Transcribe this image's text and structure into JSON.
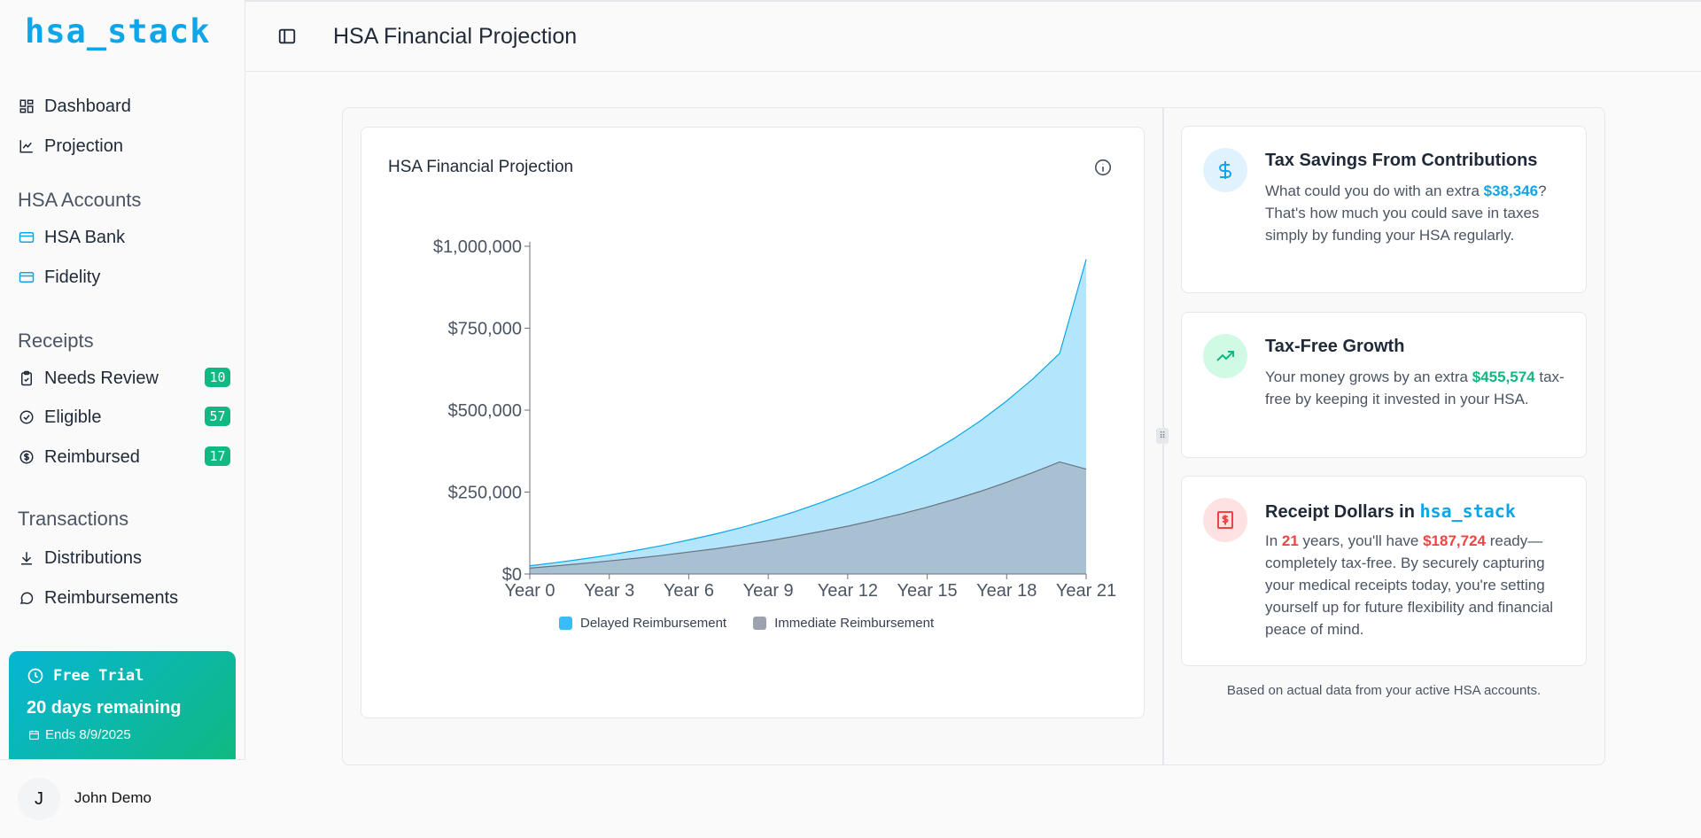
{
  "app": {
    "logo": "hsa_stack"
  },
  "sidebar": {
    "nav": [
      {
        "label": "Dashboard",
        "icon": "grid-icon"
      },
      {
        "label": "Projection",
        "icon": "line-chart-icon"
      }
    ],
    "accounts_title": "HSA Accounts",
    "accounts": [
      {
        "label": "HSA Bank",
        "icon": "credit-card-icon"
      },
      {
        "label": "Fidelity",
        "icon": "credit-card-icon"
      }
    ],
    "receipts_title": "Receipts",
    "receipts": [
      {
        "label": "Needs Review",
        "count": "10",
        "icon": "clipboard-check-icon"
      },
      {
        "label": "Eligible",
        "count": "57",
        "icon": "check-circle-icon"
      },
      {
        "label": "Reimbursed",
        "count": "17",
        "icon": "dollar-circle-icon"
      }
    ],
    "transactions_title": "Transactions",
    "transactions": [
      {
        "label": "Distributions",
        "icon": "download-icon"
      },
      {
        "label": "Reimbursements",
        "icon": "message-circle-icon"
      }
    ],
    "trial": {
      "title": "Free Trial",
      "days": "20 days remaining",
      "ends": "Ends 8/9/2025"
    },
    "user": {
      "initial": "J",
      "name": "John Demo"
    }
  },
  "header": {
    "title": "HSA Financial Projection"
  },
  "chart_data": {
    "type": "area",
    "title": "HSA Financial Projection",
    "categories": [
      "Year 0",
      "Year 3",
      "Year 6",
      "Year 9",
      "Year 12",
      "Year 15",
      "Year 18",
      "Year 21"
    ],
    "x": [
      0,
      1,
      2,
      3,
      4,
      5,
      6,
      7,
      8,
      9,
      10,
      11,
      12,
      13,
      14,
      15,
      16,
      17,
      18,
      19,
      20,
      21
    ],
    "series": [
      {
        "name": "Delayed Reimbursement",
        "color": "#38bdf8",
        "values": [
          25000,
          35000,
          46000,
          58000,
          72000,
          87000,
          104000,
          122000,
          142000,
          165000,
          190000,
          218000,
          249000,
          283000,
          322000,
          365000,
          413000,
          467000,
          528000,
          596000,
          673000,
          960000
        ]
      },
      {
        "name": "Immediate Reimbursement",
        "color": "#9ca3af",
        "values": [
          18000,
          25000,
          32000,
          40000,
          48000,
          57000,
          67000,
          77000,
          89000,
          101000,
          115000,
          130000,
          146000,
          164000,
          183000,
          204000,
          227000,
          252000,
          280000,
          310000,
          342000,
          320000
        ]
      }
    ],
    "yticks": [
      "$0",
      "$250,000",
      "$500,000",
      "$750,000",
      "$1,000,000"
    ],
    "ylim": [
      0,
      1000000
    ],
    "legend": "bottom"
  },
  "cards": [
    {
      "title": "Tax Savings From Contributions",
      "body_pre": "What could you do with an extra ",
      "highlight": "$38,346",
      "body_post": "? That's how much you could save in taxes simply by funding your HSA regularly."
    },
    {
      "title": "Tax-Free Growth",
      "body_pre": "Your money grows by an extra ",
      "highlight": "$455,574",
      "body_post": " tax-free by keeping it invested in your HSA."
    },
    {
      "title_pre": "Receipt Dollars in ",
      "title_logo": "hsa_stack",
      "body_pre": "In ",
      "years": "21",
      "body_mid": " years, you'll have ",
      "highlight": "$187,724",
      "body_post": " ready—completely tax-free. By securely capturing your medical receipts today, you're setting yourself up for future flexibility and financial peace of mind."
    }
  ],
  "footnote": "Based on actual data from your active HSA accounts."
}
